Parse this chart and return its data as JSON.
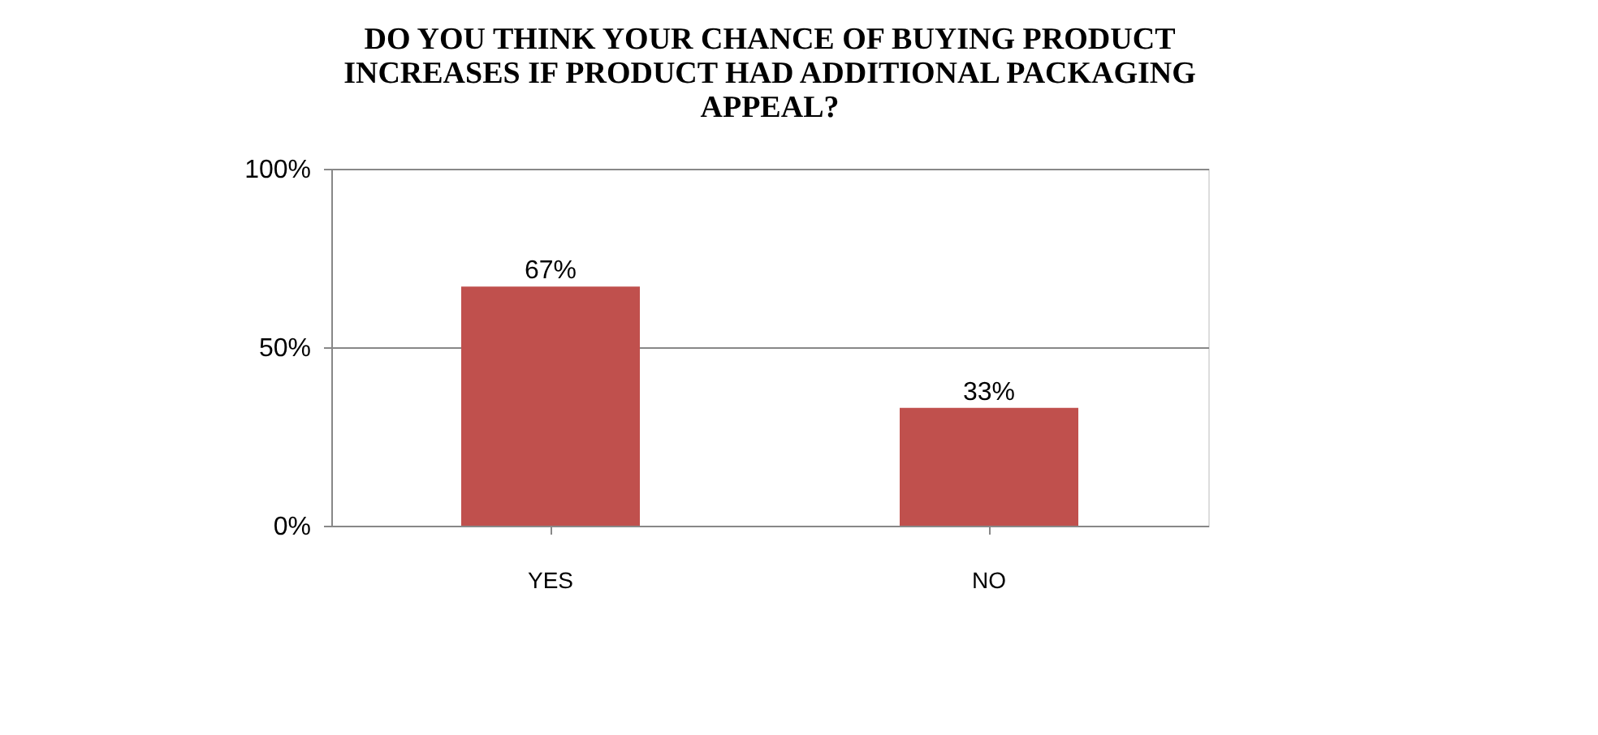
{
  "chart_data": {
    "type": "bar",
    "title": "DO YOU THINK YOUR CHANCE OF BUYING PRODUCT INCREASES IF PRODUCT HAD ADDITIONAL PACKAGING APPEAL?",
    "categories": [
      "YES",
      "NO"
    ],
    "values": [
      67,
      33
    ],
    "color": "#c0504d",
    "value_labels": [
      "67%",
      "33%"
    ],
    "ylim": [
      0,
      100
    ],
    "yticks": [
      {
        "value": 0,
        "label": "0%"
      },
      {
        "value": 50,
        "label": "50%"
      },
      {
        "value": 100,
        "label": "100%"
      }
    ],
    "grid": "y"
  }
}
